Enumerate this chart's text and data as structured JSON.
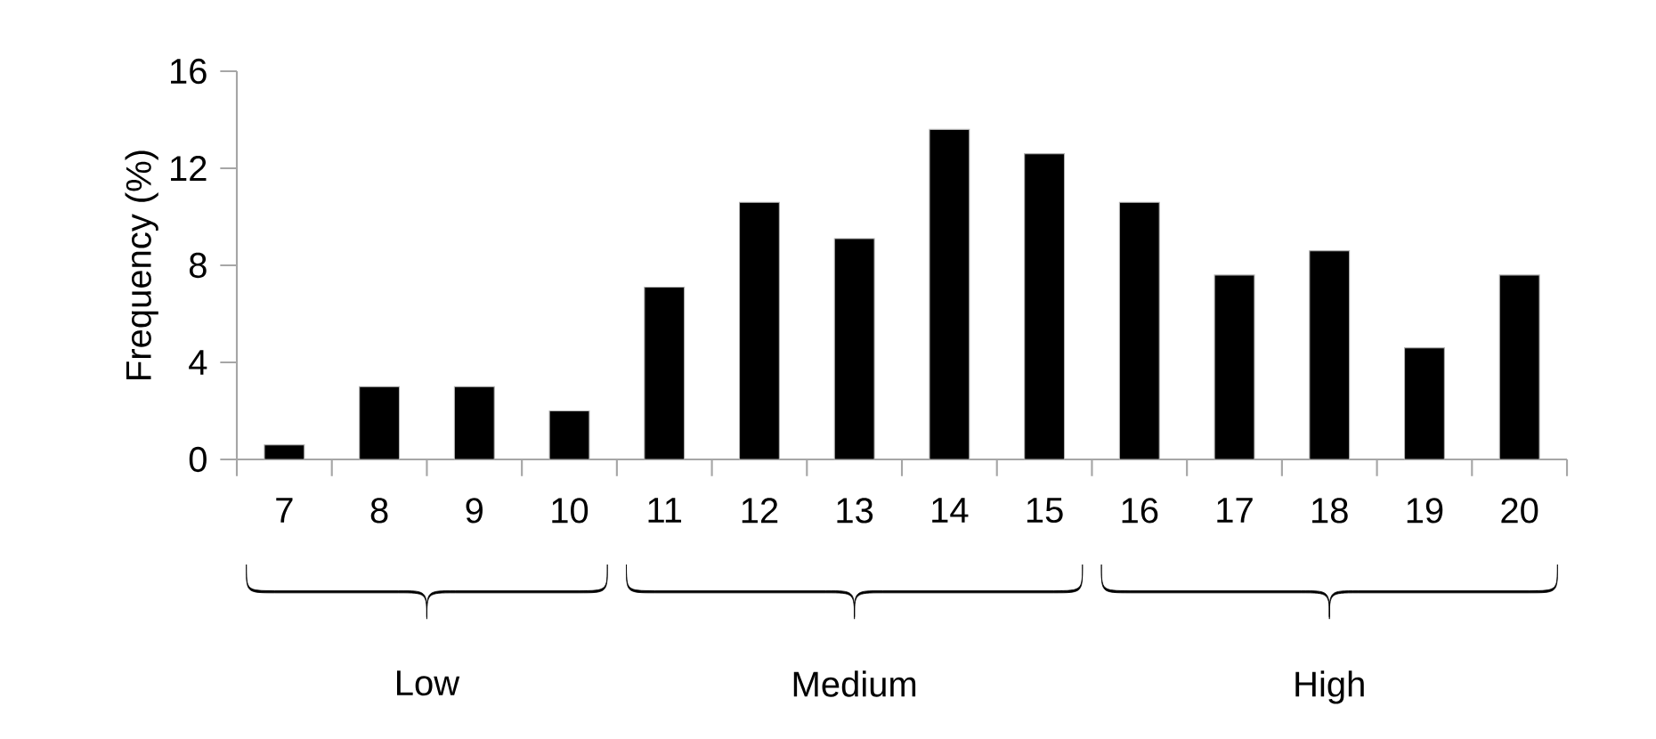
{
  "chart_data": {
    "type": "bar",
    "ylabel": "Frequency (%)",
    "categories": [
      "7",
      "8",
      "9",
      "10",
      "11",
      "12",
      "13",
      "14",
      "15",
      "16",
      "17",
      "18",
      "19",
      "20"
    ],
    "values": [
      0.6,
      3,
      3,
      2,
      7.1,
      10.6,
      9.1,
      13.6,
      12.6,
      10.6,
      7.6,
      8.6,
      4.6,
      7.6
    ],
    "color": "#000000",
    "ylim": [
      0,
      16
    ],
    "yticks": [
      0,
      4,
      8,
      12,
      16
    ],
    "grid": false,
    "annotations": [
      "Low",
      "Medium",
      "High"
    ]
  }
}
